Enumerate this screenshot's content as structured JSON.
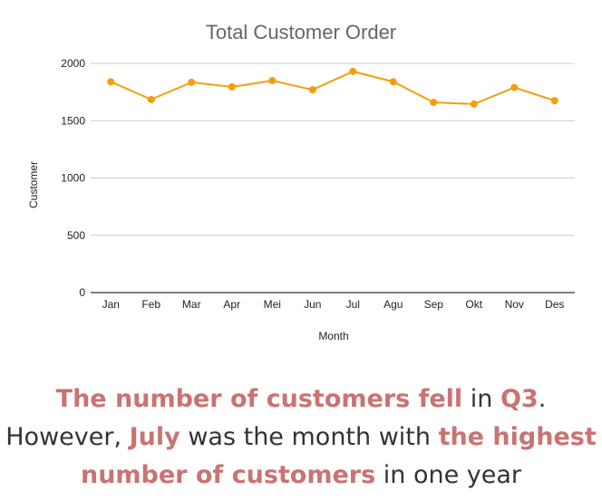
{
  "chart_data": {
    "type": "line",
    "title": "Total Customer Order",
    "xlabel": "Month",
    "ylabel": "Customer",
    "categories": [
      "Jan",
      "Feb",
      "Mar",
      "Apr",
      "Mei",
      "Jun",
      "Jul",
      "Agu",
      "Sep",
      "Okt",
      "Nov",
      "Des"
    ],
    "series": [
      {
        "values": [
          1840,
          1685,
          1835,
          1795,
          1850,
          1770,
          1930,
          1840,
          1660,
          1645,
          1790,
          1675
        ]
      }
    ],
    "ylim": [
      0,
      2000
    ],
    "yticks": [
      0,
      500,
      1000,
      1500,
      2000
    ],
    "grid": true,
    "legend": "none",
    "colors": {
      "line": "#f59e0b",
      "grid": "#cccccc",
      "axis": "#333333",
      "title": "#666666"
    }
  },
  "caption": {
    "segments": [
      {
        "text": "The number of customers fell",
        "highlight": true
      },
      {
        "text": " in ",
        "highlight": false
      },
      {
        "text": "Q3",
        "highlight": true
      },
      {
        "text": ". However, ",
        "highlight": false
      },
      {
        "text": "July",
        "highlight": true
      },
      {
        "text": " was the month with ",
        "highlight": false
      },
      {
        "text": "the highest number of customers",
        "highlight": true
      },
      {
        "text": " in one year",
        "highlight": false
      }
    ],
    "highlight_color": "#c97373",
    "text_color": "#333333"
  }
}
